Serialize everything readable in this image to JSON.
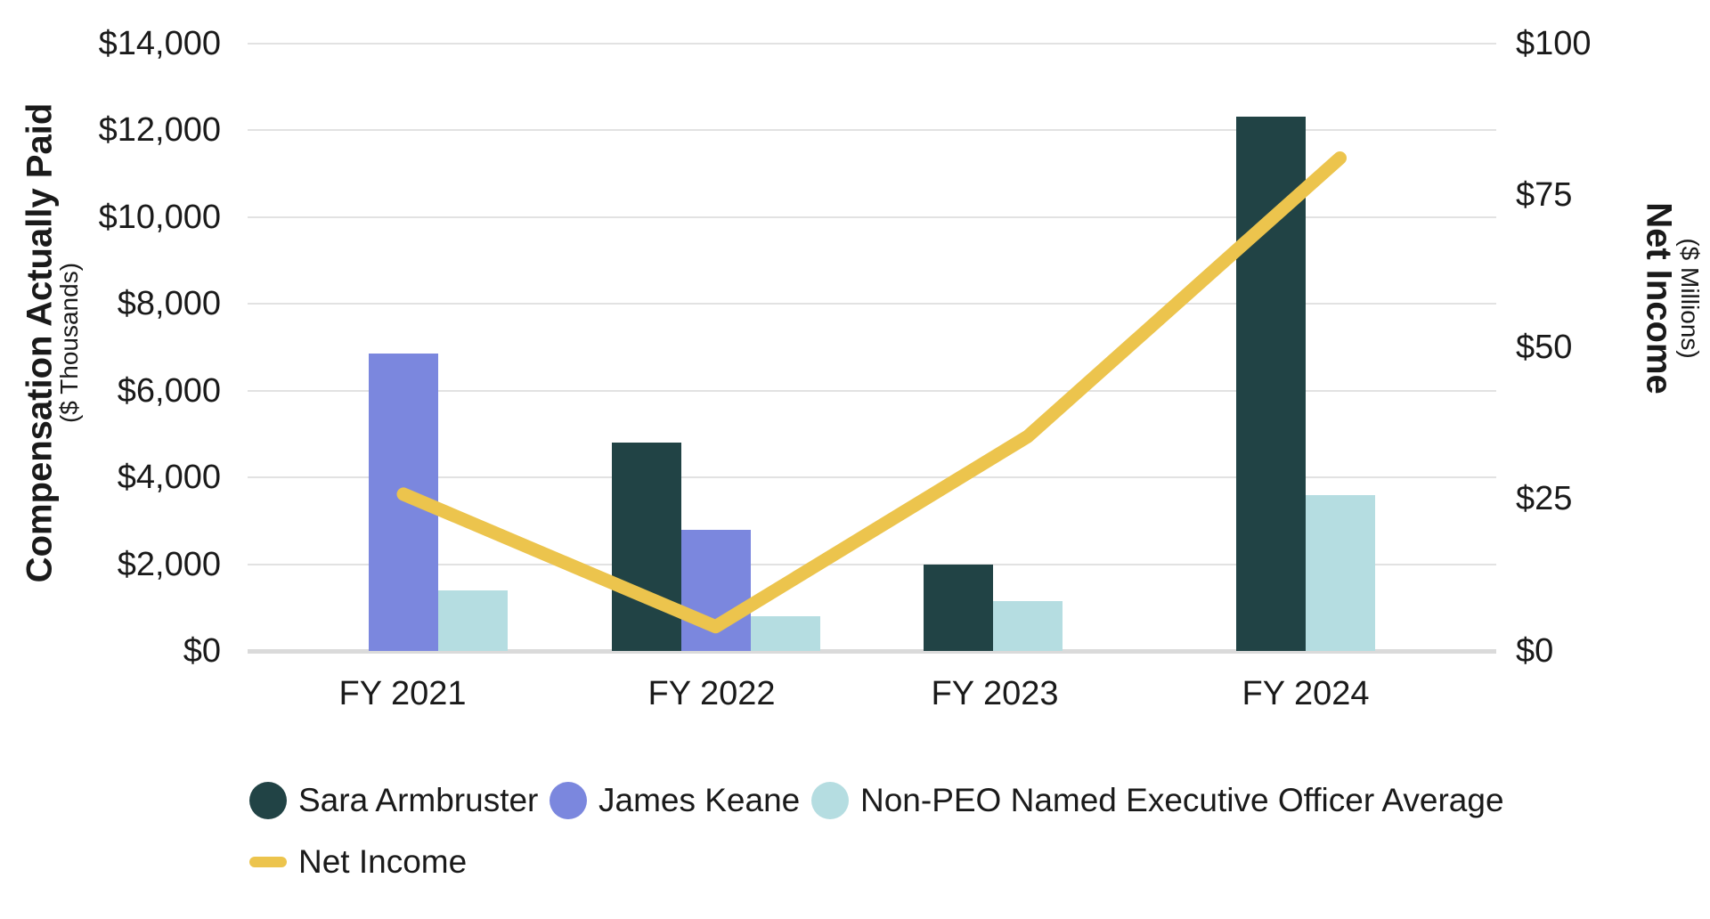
{
  "chart": {
    "left_axis": {
      "title": "Compensation Actually Paid",
      "subtitle": "($ Thousands)",
      "tick_labels": [
        "$0",
        "$2,000",
        "$4,000",
        "$6,000",
        "$8,000",
        "$10,000",
        "$12,000",
        "$14,000"
      ]
    },
    "right_axis": {
      "title": "Net Income",
      "subtitle": "($ Millions)",
      "tick_labels": [
        "$0",
        "$25",
        "$50",
        "$75",
        "$100"
      ]
    }
  },
  "chart_data": {
    "type": "combo-bar-line",
    "categories": [
      "FY 2021",
      "FY 2022",
      "FY 2023",
      "FY 2024"
    ],
    "bar_series": [
      {
        "name": "Sara Armbruster",
        "color": "#214345",
        "unit": "$ thousands",
        "values": [
          null,
          4800,
          2000,
          12300
        ],
        "slots": [
          null,
          0,
          0,
          0
        ]
      },
      {
        "name": "James Keane",
        "color": "#7b87de",
        "unit": "$ thousands",
        "values": [
          6850,
          2800,
          null,
          null
        ],
        "slots": [
          1,
          1,
          null,
          null
        ]
      },
      {
        "name": "Non-PEO Named Executive Officer Average",
        "color": "#b5dde1",
        "unit": "$ thousands",
        "values": [
          1400,
          800,
          1150,
          3600
        ],
        "slots": [
          2,
          2,
          1,
          1
        ]
      }
    ],
    "line_series": {
      "name": "Net Income",
      "color": "#ecc44d",
      "unit": "$ millions",
      "values": [
        25.8,
        4.0,
        35.3,
        81.1
      ]
    },
    "left_axis_range": [
      0,
      14000,
      2000
    ],
    "right_axis_range": [
      0,
      100,
      25
    ],
    "grid": true,
    "legend_position": "bottom-left"
  }
}
